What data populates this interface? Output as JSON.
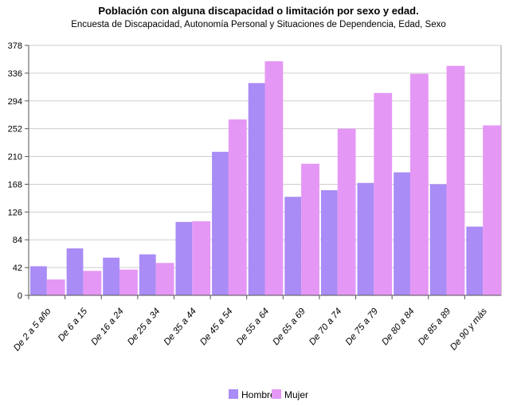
{
  "chart_data": {
    "type": "bar",
    "title": "Población con alguna discapacidad o limitación por sexo y edad.",
    "subtitle": "Encuesta de Discapacidad, Autonomía Personal y Situaciones de Dependencia, Edad, Sexo",
    "xlabel": "",
    "ylabel": "",
    "ylim": [
      0,
      378
    ],
    "yticks": [
      "0",
      "42",
      "84",
      "126",
      "168",
      "210",
      "252",
      "294",
      "336",
      "378"
    ],
    "grid": true,
    "legend_position": "bottom",
    "categories": [
      "De 2 a 5 año",
      "De 6 a 15",
      "De 16 a 24",
      "De 25 a 34",
      "De 35 a 44",
      "De 45 a 54",
      "De 55 a 64",
      "De 65 a 69",
      "De 70 a 74",
      "De 75 a 79",
      "De 80 a 84",
      "De 85 a 89",
      "De 90 y más"
    ],
    "series": [
      {
        "name": "Hombre",
        "color": "#a98cf5",
        "values": [
          44,
          71,
          57,
          62,
          111,
          217,
          321,
          149,
          159,
          170,
          186,
          168,
          104
        ]
      },
      {
        "name": "Mujer",
        "color": "#e597f5",
        "values": [
          24,
          37,
          39,
          49,
          112,
          266,
          354,
          199,
          252,
          306,
          335,
          347,
          257
        ]
      }
    ]
  }
}
